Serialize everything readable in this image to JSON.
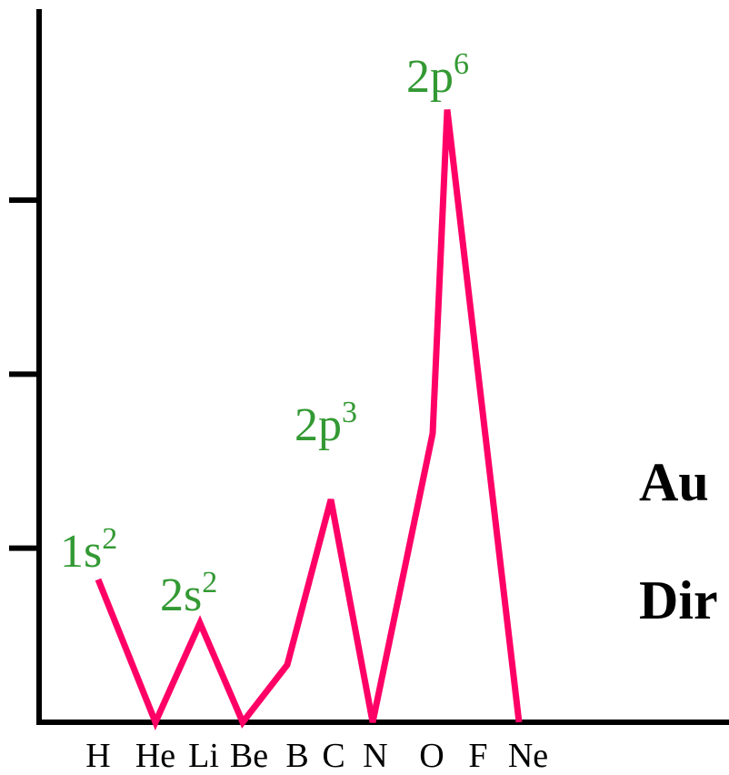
{
  "chart_data": {
    "type": "line",
    "categories": [
      "H",
      "He",
      "Li",
      "Be",
      "B",
      "C",
      "N",
      "O",
      "F",
      "Ne"
    ],
    "series": [
      {
        "values": [
          0.82,
          0.0,
          0.57,
          0.0,
          0.33,
          1.28,
          0.0,
          1.66,
          3.52,
          0.0
        ]
      }
    ],
    "ylim": [
      0,
      4.15
    ],
    "yticks": [
      1,
      2,
      3
    ],
    "colors": {
      "line": "#ff0066",
      "annotation": "#339933",
      "axis": "#000000"
    },
    "annotations": [
      {
        "base": "1s",
        "sup": "2",
        "category": "H"
      },
      {
        "base": "2s",
        "sup": "2",
        "category": "Li"
      },
      {
        "base": "2p",
        "sup": "3",
        "category": "C"
      },
      {
        "base": "2p",
        "sup": "6",
        "category": "F"
      }
    ],
    "side_text": [
      "Au",
      "Dir"
    ]
  }
}
